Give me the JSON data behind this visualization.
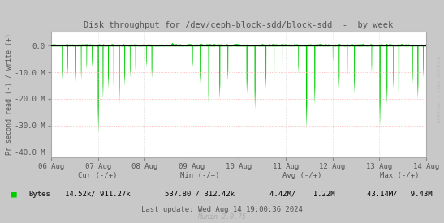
{
  "title": "Disk throughput for /dev/ceph-block-sdd/block-sdd  -  by week",
  "ylabel": "Pr second read (-) / write (+)",
  "line_color": "#00cc00",
  "ylim": [
    -42000000,
    5500000
  ],
  "yticks": [
    0,
    -10000000,
    -20000000,
    -30000000,
    -40000000
  ],
  "ytick_labels": [
    "0.0",
    "-10.0 M",
    "-20.0 M",
    "-30.0 M",
    "-40.0 M"
  ],
  "x_start": 0,
  "x_end": 691200,
  "xtick_positions": [
    0,
    86400,
    172800,
    259200,
    345600,
    432000,
    518400,
    604800,
    691200
  ],
  "xtick_labels": [
    "06 Aug",
    "07 Aug",
    "08 Aug",
    "09 Aug",
    "10 Aug",
    "11 Aug",
    "12 Aug",
    "13 Aug",
    "14 Aug"
  ],
  "legend_label": "Bytes",
  "cur_label": "Cur (-/+)",
  "cur_val": "14.52k/ 911.27k",
  "min_label": "Min (-/+)",
  "min_val": "537.80 / 312.42k",
  "avg_label": "Avg (-/+)",
  "avg_val": "4.42M/    1.22M",
  "max_label": "Max (-/+)",
  "max_val": "43.14M/   9.43M",
  "last_update": "Last update: Wed Aug 14 19:00:36 2024",
  "munin_label": "Munin 2.0.75",
  "watermark": "RRDTOOL / TOBI OETIKER",
  "outer_bg": "#c8c8c8",
  "plot_bg": "#ffffff",
  "pink_lines": [
    -10000000,
    -20000000,
    -30000000
  ],
  "red_lines": [
    -10000000,
    -30000000
  ]
}
